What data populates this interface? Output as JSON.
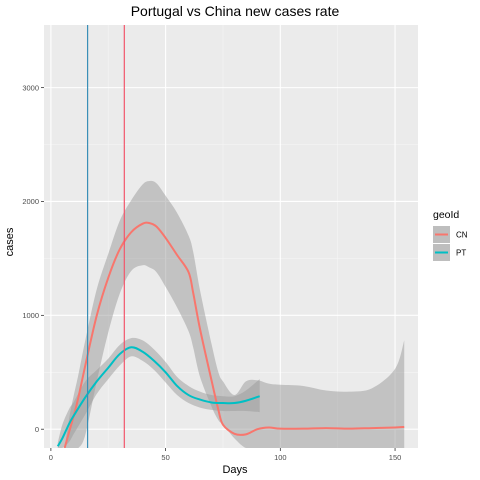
{
  "chart_data": {
    "type": "line",
    "title": "Portugal vs China new cases rate",
    "xlabel": "Days",
    "ylabel": "cases",
    "xlim": [
      -3,
      160
    ],
    "ylim": [
      -165,
      3550
    ],
    "x_ticks": [
      0,
      50,
      100,
      150
    ],
    "x_tick_labels": [
      "0",
      "50",
      "100",
      "150"
    ],
    "y_ticks": [
      0,
      1000,
      2000,
      3000
    ],
    "y_tick_labels": [
      "0",
      "1000",
      "2000",
      "3000"
    ],
    "x_minor_ticks": [
      25,
      75,
      125
    ],
    "y_minor_ticks": [
      500,
      1500,
      2500
    ],
    "grid": true,
    "legend": {
      "title": "geoId",
      "position": "right",
      "entries": [
        {
          "label": "CN",
          "color": "#F8766D"
        },
        {
          "label": "PT",
          "color": "#00BFC4"
        }
      ]
    },
    "vlines": [
      {
        "x": 16,
        "color": "#3A8FB7"
      },
      {
        "x": 32,
        "color": "#F2556B"
      }
    ],
    "series": [
      {
        "name": "CN",
        "color": "#F8766D",
        "x": [
          6,
          8,
          10,
          12,
          15,
          20,
          25,
          30,
          35,
          40,
          43,
          46,
          50,
          55,
          60,
          62,
          65,
          70,
          73,
          75,
          80,
          85,
          90,
          95,
          100,
          110,
          120,
          130,
          140,
          150,
          154
        ],
        "y": [
          -165,
          -20,
          120,
          280,
          560,
          1000,
          1330,
          1580,
          1730,
          1805,
          1810,
          1780,
          1680,
          1530,
          1380,
          1200,
          880,
          430,
          170,
          40,
          -40,
          -45,
          0,
          15,
          5,
          5,
          10,
          5,
          10,
          15,
          20
        ],
        "ci_lower": [
          -165,
          -165,
          -165,
          -165,
          -50,
          420,
          850,
          1190,
          1390,
          1440,
          1420,
          1380,
          1250,
          1070,
          860,
          720,
          460,
          200,
          80,
          40,
          -80,
          -165,
          -165,
          -165,
          -165,
          -165,
          -165,
          -165,
          -165,
          -165,
          -165
        ],
        "ci_upper": [
          -165,
          100,
          300,
          480,
          780,
          1230,
          1540,
          1830,
          2010,
          2150,
          2180,
          2160,
          2050,
          1900,
          1700,
          1560,
          1220,
          750,
          500,
          420,
          300,
          420,
          430,
          400,
          390,
          380,
          340,
          330,
          360,
          530,
          780
        ]
      },
      {
        "name": "PT",
        "color": "#00BFC4",
        "x": [
          3,
          5,
          8,
          10,
          15,
          20,
          25,
          30,
          35,
          40,
          45,
          50,
          55,
          60,
          65,
          70,
          75,
          80,
          85,
          91
        ],
        "y": [
          -150,
          -80,
          50,
          120,
          280,
          420,
          540,
          660,
          720,
          680,
          600,
          500,
          380,
          300,
          260,
          235,
          230,
          230,
          250,
          290
        ],
        "ci_lower": [
          -165,
          -165,
          -110,
          -40,
          130,
          310,
          440,
          560,
          640,
          600,
          520,
          410,
          300,
          230,
          190,
          170,
          160,
          160,
          160,
          150
        ],
        "ci_upper": [
          -120,
          40,
          180,
          240,
          420,
          520,
          620,
          740,
          800,
          780,
          700,
          590,
          460,
          380,
          330,
          300,
          290,
          290,
          340,
          440
        ]
      }
    ]
  }
}
